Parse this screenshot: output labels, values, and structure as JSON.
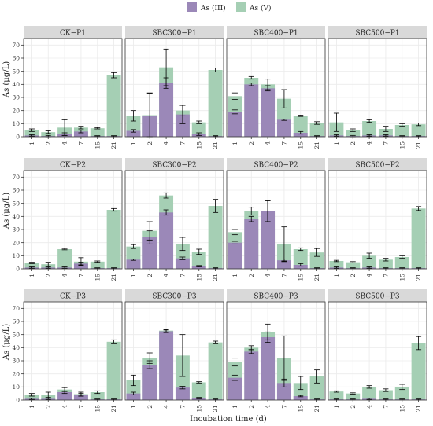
{
  "chart_data": {
    "type": "bar",
    "layout": "stacked overlay bars in a 3x4 facet grid",
    "xlabel": "Incubation time (d)",
    "ylabel": "As (μg/L)",
    "ylim": [
      0,
      75
    ],
    "yticks": [
      0,
      10,
      20,
      30,
      40,
      50,
      60,
      70
    ],
    "categories": [
      "1",
      "2",
      "4",
      "7",
      "15",
      "21"
    ],
    "legend": {
      "position": "top",
      "items": [
        {
          "key": "as3",
          "label": "As (III)",
          "color": "#9b88b8"
        },
        {
          "key": "as5",
          "label": "As (V)",
          "color": "#a5cfb4"
        }
      ]
    },
    "grid": true,
    "panels": [
      {
        "title": "CK−P1",
        "as3": [
          1,
          0.5,
          2,
          4,
          0.5,
          0.5
        ],
        "as3_err": [
          0.5,
          0.5,
          1,
          1,
          0.3,
          0.3
        ],
        "total": [
          5,
          3.5,
          7,
          7,
          6.5,
          47
        ],
        "total_err": [
          1,
          1,
          6,
          1,
          0.5,
          2
        ]
      },
      {
        "title": "SBC300−P1",
        "as3": [
          4.5,
          16,
          41,
          17,
          2,
          0.5
        ],
        "as3_err": [
          1,
          17,
          4,
          7,
          1,
          0.3
        ],
        "total": [
          16,
          16.5,
          53,
          20,
          11,
          51
        ],
        "total_err": [
          4,
          17,
          14,
          4,
          1,
          1.5
        ]
      },
      {
        "title": "SBC400−P1",
        "as3": [
          19,
          40,
          37,
          13,
          3,
          0.5
        ],
        "as3_err": [
          1.5,
          1,
          2,
          0.5,
          1,
          0.3
        ],
        "total": [
          31,
          45,
          40,
          29,
          16,
          10.5
        ],
        "total_err": [
          2.5,
          1,
          4,
          7,
          0.5,
          1
        ]
      },
      {
        "title": "SBC500−P1",
        "as3": [
          1,
          0.5,
          1,
          1,
          0.5,
          0.5
        ],
        "as3_err": [
          0.5,
          0.5,
          0.5,
          0.5,
          0.3,
          0.3
        ],
        "total": [
          11,
          5,
          12,
          6,
          9,
          9.5
        ],
        "total_err": [
          7,
          1,
          1,
          2,
          1,
          1
        ]
      },
      {
        "title": "CK−P2",
        "as3": [
          1,
          1,
          1,
          4,
          0.5,
          0.5
        ],
        "as3_err": [
          0.5,
          0.5,
          0.5,
          1,
          0.3,
          0.3
        ],
        "total": [
          4.5,
          3.5,
          15,
          5.5,
          5.5,
          45
        ],
        "total_err": [
          0.5,
          1.5,
          0.5,
          3,
          0.5,
          1
        ]
      },
      {
        "title": "SBC300−P2",
        "as3": [
          7,
          24,
          43,
          8,
          2,
          0.5
        ],
        "as3_err": [
          0.5,
          5,
          2,
          1,
          0.5,
          0.3
        ],
        "total": [
          17,
          29,
          56,
          19,
          13,
          48
        ],
        "total_err": [
          1.5,
          7,
          2,
          5,
          2,
          5
        ]
      },
      {
        "title": "SBC400−P2",
        "as3": [
          20,
          38,
          44,
          6.5,
          3,
          0.5
        ],
        "as3_err": [
          1,
          2,
          8,
          1,
          1,
          0.3
        ],
        "total": [
          28,
          44,
          44,
          19,
          15,
          12.5
        ],
        "total_err": [
          2,
          3,
          8,
          13,
          1,
          3
        ]
      },
      {
        "title": "SBC500−P2",
        "as3": [
          1,
          0.5,
          1,
          0.5,
          0.5,
          0.5
        ],
        "as3_err": [
          0.5,
          0.3,
          0.5,
          0.3,
          0.3,
          0.3
        ],
        "total": [
          6,
          5,
          10,
          7,
          9,
          46
        ],
        "total_err": [
          0.5,
          0.5,
          2,
          1,
          1,
          1.5
        ]
      },
      {
        "title": "CK−P3",
        "as3": [
          1,
          1,
          6,
          4,
          0.5,
          0.5
        ],
        "as3_err": [
          0.5,
          0.5,
          1,
          1,
          0.3,
          0.3
        ],
        "total": [
          4,
          4,
          8,
          4.5,
          6,
          44.5
        ],
        "total_err": [
          1,
          2,
          1.5,
          1.5,
          1,
          1.5
        ]
      },
      {
        "title": "SBC300−P3",
        "as3": [
          5,
          27,
          52.5,
          9.5,
          1.5,
          0.5
        ],
        "as3_err": [
          1,
          3,
          1,
          1,
          0.5,
          0.3
        ],
        "total": [
          15,
          32,
          53,
          34,
          13.5,
          44
        ],
        "total_err": [
          4,
          4,
          1,
          16,
          0.5,
          1
        ]
      },
      {
        "title": "SBC400−P3",
        "as3": [
          17,
          37,
          48,
          13,
          3,
          0.5
        ],
        "as3_err": [
          2,
          1.5,
          4,
          3,
          0.5,
          0.3
        ],
        "total": [
          29,
          40,
          52,
          32,
          13,
          18
        ],
        "total_err": [
          3,
          1.5,
          6,
          17,
          5,
          5
        ]
      },
      {
        "title": "SBC500−P3",
        "as3": [
          0.5,
          0.5,
          1,
          0.5,
          0.5,
          0.5
        ],
        "as3_err": [
          0.3,
          0.3,
          0.5,
          0.3,
          0.3,
          0.3
        ],
        "total": [
          6.5,
          5,
          10,
          7.5,
          10,
          43.5
        ],
        "total_err": [
          0.5,
          0.5,
          1,
          1,
          2,
          5
        ]
      }
    ]
  }
}
